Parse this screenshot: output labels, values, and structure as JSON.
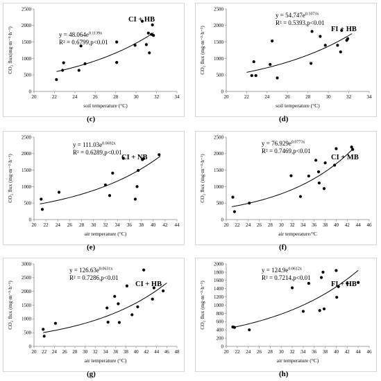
{
  "chart_data": [
    {
      "id": "c",
      "type": "scatter",
      "letter": "(c)",
      "tag": "CI + HB",
      "ylabel": "CO₂ flux(mg·m⁻²·h⁻¹)",
      "xlabel": "soil temperature (°C)",
      "eq_a": "y = 48.064e",
      "eq_b": "0.1139x",
      "eq_r2": "R² = 0.6799,p<0.01",
      "coef": 48.064,
      "rate": 0.1139,
      "xlim": [
        20,
        34
      ],
      "xticks": [
        20,
        22,
        24,
        26,
        28,
        30,
        32,
        34
      ],
      "ylim": [
        0,
        2500
      ],
      "yticks": [
        0,
        500,
        1000,
        1500,
        2000,
        2500
      ],
      "fit_range": [
        22.2,
        31.7
      ],
      "points": [
        [
          22.2,
          360
        ],
        [
          22.8,
          640
        ],
        [
          22.9,
          870
        ],
        [
          24.4,
          640
        ],
        [
          24.6,
          1380
        ],
        [
          25.0,
          840
        ],
        [
          28.1,
          880
        ],
        [
          28.1,
          1500
        ],
        [
          29.9,
          1400
        ],
        [
          30.6,
          2130
        ],
        [
          31.0,
          1420
        ],
        [
          31.2,
          1770
        ],
        [
          31.3,
          1170
        ],
        [
          31.5,
          1730
        ],
        [
          31.6,
          2020
        ],
        [
          31.7,
          1700
        ]
      ]
    },
    {
      "id": "d",
      "type": "scatter",
      "letter": "(d)",
      "tag": "FI + HB",
      "ylabel": "CO₂ flux (mg·m⁻²·h⁻¹)",
      "xlabel": "soil temperature (°C)",
      "eq_a": "y = 54.747e",
      "eq_b": "0.1073x",
      "eq_r2": "R² = 0.5393,p<0.01",
      "coef": 54.747,
      "rate": 0.1073,
      "xlim": [
        20,
        34
      ],
      "xticks": [
        20,
        22,
        24,
        26,
        28,
        30,
        32,
        34
      ],
      "ylim": [
        0,
        2500
      ],
      "yticks": [
        0,
        500,
        1000,
        1500,
        2000,
        2500
      ],
      "fit_range": [
        22.0,
        32.3
      ],
      "points": [
        [
          22.5,
          480
        ],
        [
          22.7,
          900
        ],
        [
          22.9,
          480
        ],
        [
          24.3,
          820
        ],
        [
          24.5,
          1530
        ],
        [
          25.0,
          410
        ],
        [
          28.3,
          850
        ],
        [
          28.4,
          1820
        ],
        [
          29.2,
          1670
        ],
        [
          29.7,
          1400
        ],
        [
          30.9,
          1400
        ],
        [
          31.2,
          1200
        ],
        [
          31.3,
          1850
        ],
        [
          31.8,
          1550
        ],
        [
          31.9,
          1600
        ]
      ]
    },
    {
      "id": "e",
      "type": "scatter",
      "letter": "(e)",
      "tag": "CI + NB",
      "ylabel": "CO₂ flux (mg·m⁻²·h⁻¹)",
      "xlabel": "air temperature (°C)",
      "eq_a": "y = 111.03e",
      "eq_b": "0.0692x",
      "eq_r2": "R² = 0.6289,p<0.01",
      "coef": 111.03,
      "rate": 0.0692,
      "xlim": [
        20,
        44
      ],
      "xticks": [
        20,
        22,
        24,
        26,
        28,
        30,
        32,
        34,
        36,
        38,
        40,
        42,
        44
      ],
      "ylim": [
        0,
        2500
      ],
      "yticks": [
        0,
        500,
        1000,
        1500,
        2000,
        2500
      ],
      "fit_range": [
        21.0,
        41.2
      ],
      "points": [
        [
          21.2,
          620
        ],
        [
          21.4,
          310
        ],
        [
          24.2,
          830
        ],
        [
          32.0,
          1050
        ],
        [
          32.7,
          730
        ],
        [
          33.2,
          1410
        ],
        [
          35.0,
          1860
        ],
        [
          37.0,
          620
        ],
        [
          37.3,
          1000
        ],
        [
          37.5,
          1490
        ],
        [
          38.2,
          1820
        ],
        [
          38.4,
          1850
        ],
        [
          41.0,
          1970
        ]
      ]
    },
    {
      "id": "f",
      "type": "scatter",
      "letter": "(f)",
      "tag": "CI + MB",
      "ylabel": "CO₂ flux (mg·m⁻²·h⁻¹)",
      "xlabel": "air temperature/°C",
      "eq_a": "y = 76.929e",
      "eq_b": "0.0773x",
      "eq_r2": "R² = 0.7469,p<0.01",
      "coef": 76.929,
      "rate": 0.0773,
      "xlim": [
        20,
        46
      ],
      "xticks": [
        20,
        22,
        24,
        26,
        28,
        30,
        32,
        34,
        36,
        38,
        40,
        42,
        44,
        46
      ],
      "ylim": [
        0,
        2500
      ],
      "yticks": [
        0,
        500,
        1000,
        1500,
        2000,
        2500
      ],
      "fit_range": [
        21.0,
        43.0
      ],
      "points": [
        [
          21.2,
          680
        ],
        [
          21.5,
          240
        ],
        [
          24.2,
          500
        ],
        [
          31.8,
          1330
        ],
        [
          33.5,
          700
        ],
        [
          35.0,
          1320
        ],
        [
          36.3,
          1800
        ],
        [
          36.8,
          1450
        ],
        [
          36.9,
          1110
        ],
        [
          37.8,
          940
        ],
        [
          38.0,
          1720
        ],
        [
          39.7,
          1650
        ],
        [
          40.0,
          2150
        ],
        [
          42.8,
          2200
        ],
        [
          43.0,
          2130
        ]
      ]
    },
    {
      "id": "g",
      "type": "scatter",
      "letter": "(g)",
      "tag": "CI + HB",
      "ylabel": "CO₂ flux (mg·m⁻²·h⁻¹)",
      "xlabel": "air temperature (°C)",
      "eq_a": "y = 126.63e",
      "eq_b": "0.0631x",
      "eq_r2": "R² = 0.7286,p<0.01",
      "coef": 126.63,
      "rate": 0.0631,
      "xlim": [
        20,
        48
      ],
      "xticks": [
        20,
        22,
        24,
        26,
        28,
        30,
        32,
        34,
        36,
        38,
        40,
        42,
        44,
        46,
        48
      ],
      "ylim": [
        0,
        3000
      ],
      "yticks": [
        0,
        500,
        1000,
        1500,
        2000,
        2500,
        3000
      ],
      "fit_range": [
        21.8,
        46.0
      ],
      "points": [
        [
          21.8,
          620
        ],
        [
          22.0,
          370
        ],
        [
          24.2,
          840
        ],
        [
          34.3,
          1400
        ],
        [
          34.5,
          880
        ],
        [
          35.8,
          1820
        ],
        [
          36.5,
          1550
        ],
        [
          36.7,
          870
        ],
        [
          38.2,
          2200
        ],
        [
          39.2,
          1150
        ],
        [
          40.3,
          1440
        ],
        [
          41.5,
          2780
        ],
        [
          43.2,
          1720
        ],
        [
          43.5,
          2130
        ],
        [
          45.3,
          2020
        ]
      ]
    },
    {
      "id": "h",
      "type": "scatter",
      "letter": "(h)",
      "tag": "FI + HB",
      "ylabel": "CO₂ flux (mg·m⁻²·h⁻¹)",
      "xlabel": "air temperature (°C)",
      "eq_a": "y = 124.9e",
      "eq_b": "0.0612x",
      "eq_r2": "R² = 0.7214,p<0.01",
      "coef": 124.9,
      "rate": 0.0612,
      "xlim": [
        20,
        46
      ],
      "xticks": [
        20,
        22,
        24,
        26,
        28,
        30,
        32,
        34,
        36,
        38,
        40,
        42,
        44,
        46
      ],
      "ylim": [
        0,
        2000
      ],
      "yticks": [
        0,
        200,
        400,
        600,
        800,
        1000,
        1200,
        1400,
        1600,
        1800,
        2000
      ],
      "fit_range": [
        21.0,
        44.0
      ],
      "points": [
        [
          21.2,
          470
        ],
        [
          21.5,
          460
        ],
        [
          24.2,
          400
        ],
        [
          32.0,
          1420
        ],
        [
          34.0,
          850
        ],
        [
          35.0,
          1530
        ],
        [
          37.0,
          870
        ],
        [
          37.3,
          1670
        ],
        [
          37.6,
          1800
        ],
        [
          37.8,
          910
        ],
        [
          40.0,
          1840
        ],
        [
          40.1,
          1190
        ],
        [
          40.4,
          1450
        ],
        [
          42.0,
          1530
        ],
        [
          44.0,
          1550
        ]
      ]
    }
  ]
}
